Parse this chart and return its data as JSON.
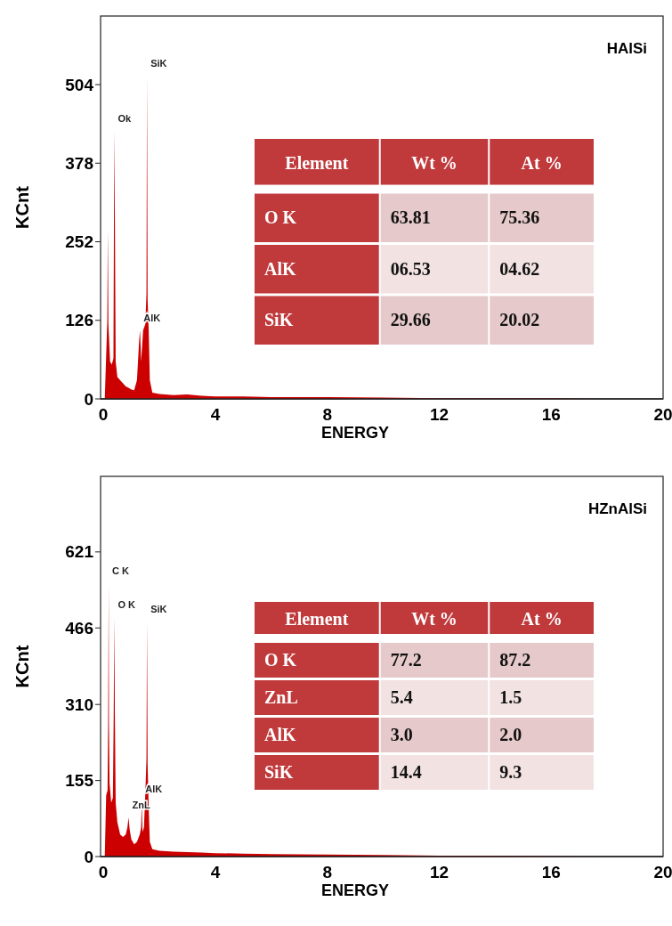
{
  "chart_data": [
    {
      "type": "area",
      "title": "HAlSi",
      "xlabel": "ENERGY",
      "ylabel": "KCnt",
      "xlim": [
        -0.1,
        20
      ],
      "ylim": [
        0,
        614
      ],
      "xticks": [
        0,
        4,
        8,
        12,
        16,
        20
      ],
      "yticks": [
        0,
        126,
        252,
        378,
        504
      ],
      "x": [
        0.05,
        0.1,
        0.14,
        0.16,
        0.18,
        0.24,
        0.3,
        0.36,
        0.39,
        0.41,
        0.44,
        0.5,
        0.6,
        0.7,
        0.8,
        0.9,
        1.0,
        1.1,
        1.2,
        1.28,
        1.31,
        1.35,
        1.42,
        1.5,
        1.54,
        1.56,
        1.58,
        1.62,
        1.66,
        1.75,
        2,
        2.5,
        3,
        3.5,
        4,
        5,
        6,
        8,
        10,
        12,
        14,
        16,
        18,
        20
      ],
      "series": [
        {
          "color": "#cc0000",
          "values": [
            0,
            70,
            125,
            273,
            120,
            60,
            55,
            65,
            430,
            300,
            60,
            35,
            30,
            25,
            20,
            18,
            15,
            14,
            30,
            95,
            110,
            60,
            110,
            120,
            170,
            519,
            160,
            110,
            30,
            10,
            8,
            6,
            7,
            5,
            4,
            4,
            3,
            3,
            2,
            1,
            1,
            1,
            0,
            0
          ]
        }
      ],
      "annotations": [
        {
          "text": "Ok",
          "x": 0.39,
          "y": 430
        },
        {
          "text": "SiK",
          "x": 1.56,
          "y": 519
        },
        {
          "text": "AlK",
          "x": 1.31,
          "y": 110
        }
      ]
    },
    {
      "type": "other",
      "annotations": [
        "Element",
        "Wt %",
        "At %",
        "O K",
        "63.81",
        "75.36",
        "AlK",
        "06.53",
        "04.62",
        "SiK",
        "29.66",
        "20.02"
      ]
    },
    {
      "type": "area",
      "title": "HZnAlSi",
      "xlabel": "ENERGY",
      "ylabel": "KCnt",
      "xlim": [
        -0.1,
        20
      ],
      "ylim": [
        0,
        775
      ],
      "xticks": [
        0,
        4,
        8,
        12,
        16,
        20
      ],
      "yticks": [
        0,
        155,
        310,
        466,
        621
      ],
      "x": [
        0.05,
        0.1,
        0.15,
        0.17,
        0.19,
        0.2,
        0.22,
        0.28,
        0.34,
        0.37,
        0.39,
        0.41,
        0.44,
        0.5,
        0.6,
        0.7,
        0.8,
        0.86,
        0.9,
        0.94,
        1.0,
        1.1,
        1.2,
        1.3,
        1.35,
        1.37,
        1.4,
        1.45,
        1.5,
        1.54,
        1.56,
        1.58,
        1.62,
        1.66,
        1.75,
        2,
        2.5,
        3,
        3.5,
        4,
        5,
        6,
        8,
        10,
        12,
        14,
        16,
        18,
        20
      ],
      "series": [
        {
          "color": "#cc0000",
          "values": [
            0,
            125,
            135,
            270,
            557,
            270,
            150,
            110,
            120,
            294,
            488,
            294,
            110,
            70,
            45,
            40,
            45,
            60,
            80,
            55,
            35,
            25,
            30,
            45,
            60,
            112,
            50,
            60,
            130,
            200,
            479,
            190,
            100,
            30,
            15,
            12,
            10,
            9,
            8,
            7,
            6,
            5,
            4,
            3,
            2,
            2,
            1,
            0,
            0
          ]
        }
      ],
      "annotations": [
        {
          "text": "C K",
          "x": 0.19,
          "y": 557
        },
        {
          "text": "O K",
          "x": 0.39,
          "y": 488
        },
        {
          "text": "SiK",
          "x": 1.56,
          "y": 479
        },
        {
          "text": "AlK",
          "x": 1.37,
          "y": 112
        },
        {
          "text": "ZnL",
          "x": 0.9,
          "y": 80
        }
      ]
    },
    {
      "type": "other",
      "annotations": [
        "Element",
        "Wt %",
        "At %",
        "O K",
        "77.2",
        "87.2",
        "ZnL",
        "5.4",
        "1.5",
        "AlK",
        "3.0",
        "2.0",
        "SiK",
        "14.4",
        "9.3"
      ]
    }
  ]
}
